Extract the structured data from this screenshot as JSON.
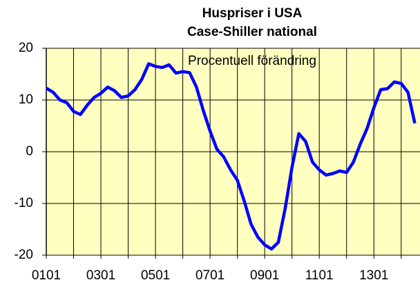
{
  "chart_data": {
    "type": "line",
    "title": "Huspriser i USA",
    "subtitle": "Case-Shiller national",
    "annotation": "Procentuell förändring",
    "categories": [
      "0101",
      null,
      null,
      null,
      null,
      null,
      null,
      null,
      "0301",
      null,
      null,
      null,
      null,
      null,
      null,
      null,
      "0501",
      null,
      null,
      null,
      null,
      null,
      null,
      null,
      "0701",
      null,
      null,
      null,
      null,
      null,
      null,
      null,
      "0901",
      null,
      null,
      null,
      null,
      null,
      null,
      null,
      "1101",
      null,
      null,
      null,
      null,
      null,
      null,
      null,
      "1301",
      null,
      null,
      null,
      null,
      null,
      null
    ],
    "series": [
      {
        "name": "Case-Shiller national",
        "color": "#0000ff",
        "values": [
          12.3,
          11.5,
          10,
          9.5,
          7.8,
          7.2,
          9,
          10.5,
          11.3,
          12.5,
          11.8,
          10.5,
          10.8,
          12,
          14,
          17,
          16.5,
          16.3,
          16.8,
          15.2,
          15.5,
          15.3,
          12.5,
          8,
          4,
          0.5,
          -1,
          -3.5,
          -5.5,
          -9.5,
          -14,
          -16.5,
          -18,
          -18.8,
          -17.5,
          -11,
          -3,
          3.5,
          2,
          -2,
          -3.5,
          -4.5,
          -4.2,
          -3.7,
          -4,
          -2,
          1.5,
          4.5,
          8.5,
          12,
          12.2,
          13.5,
          13.2,
          11.5,
          5.5
        ]
      }
    ],
    "ylim": [
      -20,
      20
    ],
    "yticks": [
      -20,
      -10,
      0,
      10,
      20
    ],
    "grid": true
  }
}
